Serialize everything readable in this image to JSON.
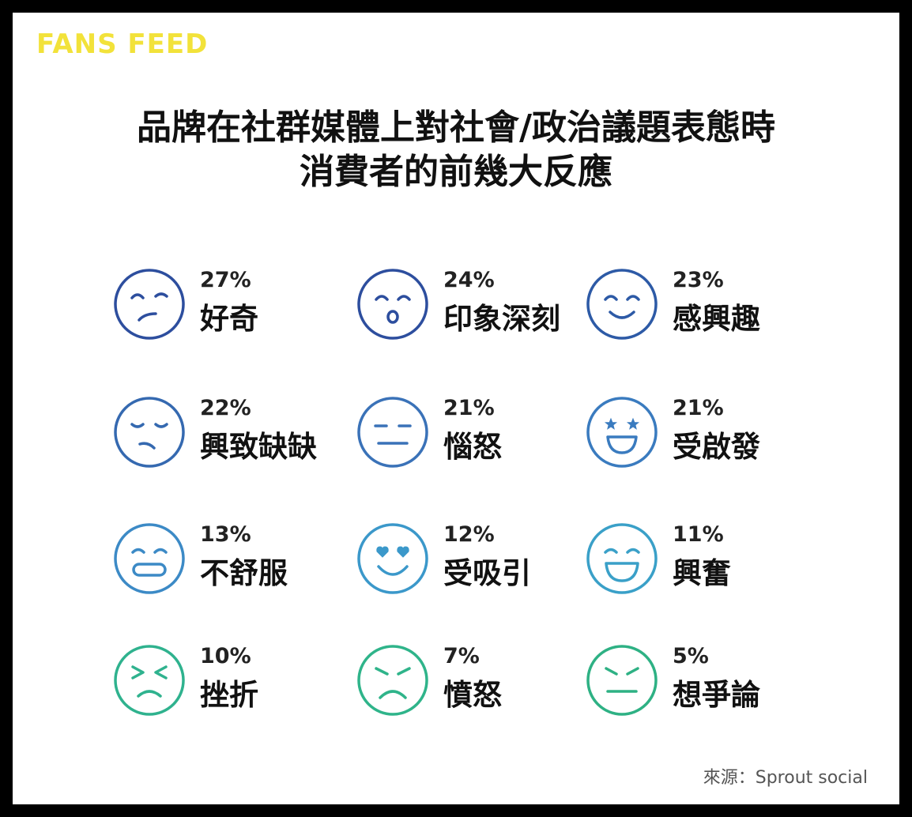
{
  "brand": "FANS FEED",
  "title_line1": "品牌在社群媒體上對社會/政治議題表態時",
  "title_line2": "消費者的前幾大反應",
  "source": "來源：Sprout social",
  "chart_data": {
    "type": "table",
    "title": "品牌在社群媒體上對社會/政治議題表態時 消費者的前幾大反應",
    "unit": "%",
    "items": [
      {
        "label": "好奇",
        "value": 27,
        "value_text": "27%",
        "icon": "curious-face-icon",
        "color": "#2d4e9e"
      },
      {
        "label": "印象深刻",
        "value": 24,
        "value_text": "24%",
        "icon": "impressed-face-icon",
        "color": "#2d4e9e"
      },
      {
        "label": "感興趣",
        "value": 23,
        "value_text": "23%",
        "icon": "interested-face-icon",
        "color": "#2d5aa6"
      },
      {
        "label": "興致缺缺",
        "value": 22,
        "value_text": "22%",
        "icon": "uninterested-face-icon",
        "color": "#3569b0"
      },
      {
        "label": "惱怒",
        "value": 21,
        "value_text": "21%",
        "icon": "annoyed-face-icon",
        "color": "#3a72b8"
      },
      {
        "label": "受啟發",
        "value": 21,
        "value_text": "21%",
        "icon": "inspired-face-icon",
        "color": "#3a7bbf"
      },
      {
        "label": "不舒服",
        "value": 13,
        "value_text": "13%",
        "icon": "uncomfortable-face-icon",
        "color": "#3c8ac6"
      },
      {
        "label": "受吸引",
        "value": 12,
        "value_text": "12%",
        "icon": "attracted-face-icon",
        "color": "#3b98ca"
      },
      {
        "label": "興奮",
        "value": 11,
        "value_text": "11%",
        "icon": "excited-face-icon",
        "color": "#3aa0c8"
      },
      {
        "label": "挫折",
        "value": 10,
        "value_text": "10%",
        "icon": "frustrated-face-icon",
        "color": "#2fb28e"
      },
      {
        "label": "憤怒",
        "value": 7,
        "value_text": "7%",
        "icon": "angry-face-icon",
        "color": "#2fb48a"
      },
      {
        "label": "想爭論",
        "value": 5,
        "value_text": "5%",
        "icon": "argumentative-face-icon",
        "color": "#2eb184"
      }
    ]
  }
}
